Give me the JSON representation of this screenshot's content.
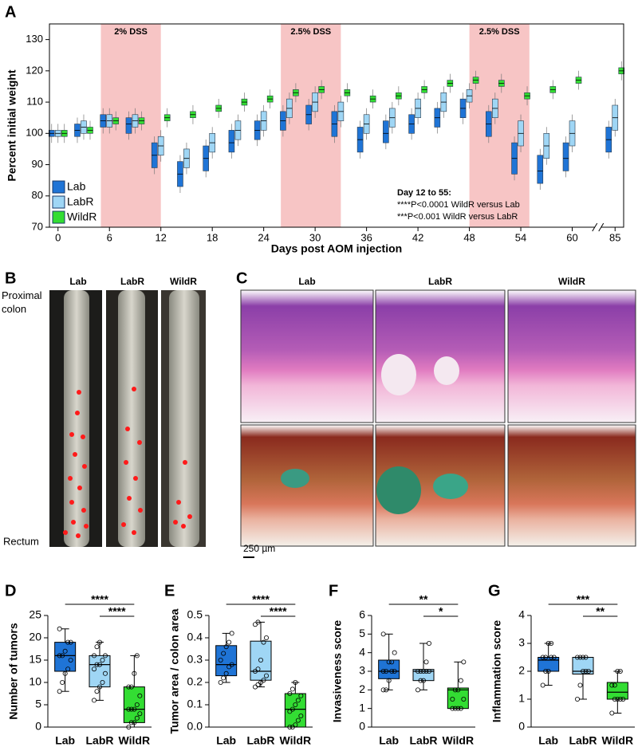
{
  "panel_labels": [
    "A",
    "B",
    "C",
    "D",
    "E",
    "F",
    "G"
  ],
  "photos": {
    "B": {
      "columns": [
        "Lab",
        "LabR",
        "WildR"
      ],
      "top_label": "Proximal colon",
      "bottom_label": "Rectum"
    },
    "C": {
      "columns": [
        "Lab",
        "LabR",
        "WildR"
      ],
      "scale_bar": "250 µm"
    }
  },
  "chart_data": [
    {
      "type": "box_series",
      "ylabel": "Percent initial weight",
      "xlabel": "Days post AOM injection",
      "x": [
        0,
        3,
        6,
        9,
        12,
        15,
        18,
        21,
        24,
        27,
        30,
        33,
        36,
        39,
        42,
        45,
        48,
        51,
        54,
        57,
        60,
        85
      ],
      "xlim": [
        -1,
        86
      ],
      "axis_break": [
        62,
        84
      ],
      "xticks": [
        0,
        6,
        12,
        18,
        24,
        30,
        36,
        42,
        48,
        54,
        60,
        85
      ],
      "ylim": [
        70,
        135
      ],
      "yticks": [
        70,
        80,
        90,
        100,
        110,
        120,
        130
      ],
      "legend": "lower left",
      "shaded": [
        {
          "start": 5,
          "end": 12,
          "label": "2% DSS",
          "color": "#f7c5c5"
        },
        {
          "start": 26,
          "end": 33,
          "label": "2.5% DSS",
          "color": "#f7c5c5"
        },
        {
          "start": 48,
          "end": 55,
          "label": "2.5% DSS",
          "color": "#f7c5c5"
        }
      ],
      "annotation": [
        "Day 12 to 55:",
        "****P<0.0001 WildR versus Lab",
        "***P<0.001 WildR versus LabR"
      ],
      "series": [
        {
          "name": "Lab",
          "color": "#1f74d6",
          "q1": [
            99,
            99,
            102,
            100,
            89,
            83,
            88,
            94,
            98,
            101,
            103,
            99,
            94,
            97,
            100,
            102,
            105,
            99,
            87,
            84,
            88,
            94
          ],
          "median": [
            100,
            101,
            104,
            103,
            93,
            87,
            92,
            97,
            101,
            104,
            106,
            103,
            98,
            100,
            103,
            105,
            108,
            103,
            92,
            88,
            92,
            98
          ],
          "q3": [
            101,
            103,
            106,
            105,
            97,
            91,
            96,
            101,
            104,
            107,
            109,
            107,
            102,
            104,
            106,
            108,
            111,
            107,
            97,
            93,
            97,
            102
          ]
        },
        {
          "name": "LabR",
          "color": "#9fd6f5",
          "q1": [
            99,
            100,
            102,
            102,
            93,
            89,
            94,
            98,
            101,
            105,
            107,
            104,
            100,
            102,
            105,
            107,
            110,
            105,
            96,
            92,
            96,
            101
          ],
          "median": [
            100,
            102,
            104,
            104,
            96,
            92,
            97,
            101,
            104,
            108,
            110,
            107,
            103,
            105,
            108,
            110,
            112,
            108,
            100,
            96,
            100,
            105
          ],
          "q3": [
            101,
            104,
            106,
            106,
            99,
            95,
            100,
            104,
            107,
            111,
            113,
            110,
            106,
            108,
            111,
            113,
            114,
            111,
            104,
            100,
            104,
            109
          ]
        },
        {
          "name": "WildR",
          "color": "#33dd33",
          "q1": [
            99,
            100,
            103,
            103,
            104,
            105,
            107,
            109,
            110,
            112,
            113,
            112,
            110,
            111,
            113,
            115,
            116,
            115,
            111,
            113,
            116,
            119
          ],
          "median": [
            100,
            101,
            104,
            104,
            105,
            106,
            108,
            110,
            111,
            113,
            114,
            113,
            111,
            112,
            114,
            116,
            117,
            116,
            112,
            114,
            117,
            120
          ],
          "q3": [
            101,
            102,
            105,
            105,
            106,
            107,
            109,
            111,
            112,
            114,
            115,
            114,
            112,
            113,
            115,
            117,
            118,
            117,
            113,
            115,
            118,
            121
          ]
        }
      ]
    },
    {
      "type": "box",
      "ylabel": "Number of tumors",
      "categories": [
        "Lab",
        "LabR",
        "WildR"
      ],
      "ylim": [
        0,
        25
      ],
      "yticks": [
        0,
        5,
        10,
        15,
        20,
        25
      ],
      "groups": [
        {
          "color": "#1f74d6",
          "min": 8,
          "q1": 12.5,
          "median": 16,
          "q3": 19,
          "max": 22,
          "points": [
            8,
            10,
            12,
            13,
            15,
            16,
            16,
            17,
            19,
            19,
            22
          ]
        },
        {
          "color": "#9fd6f5",
          "min": 6,
          "q1": 9,
          "median": 14,
          "q3": 16,
          "max": 19,
          "points": [
            6,
            8,
            9,
            10,
            12,
            13,
            14,
            14,
            15,
            16,
            16,
            18,
            19
          ]
        },
        {
          "color": "#33dd33",
          "min": 0,
          "q1": 1,
          "median": 4,
          "q3": 9,
          "max": 16,
          "points": [
            0,
            1,
            1,
            2,
            3,
            4,
            4,
            4,
            5,
            7,
            9,
            9,
            12,
            16
          ]
        }
      ],
      "significance": [
        {
          "label": "****",
          "groups": [
            "Lab",
            "WildR"
          ]
        },
        {
          "label": "****",
          "groups": [
            "LabR",
            "WildR"
          ]
        }
      ]
    },
    {
      "type": "box",
      "ylabel": "Tumor area / colon area",
      "categories": [
        "Lab",
        "LabR",
        "WildR"
      ],
      "ylim": [
        0,
        0.5
      ],
      "yticks": [
        {
          "value": 0,
          "label": "0.0"
        },
        0.1,
        0.2,
        0.3,
        0.4,
        0.5
      ],
      "groups": [
        {
          "color": "#1f74d6",
          "min": 0.2,
          "q1": 0.23,
          "median": 0.28,
          "q3": 0.365,
          "max": 0.42,
          "points": [
            0.2,
            0.22,
            0.24,
            0.27,
            0.28,
            0.3,
            0.33,
            0.36,
            0.38,
            0.42
          ]
        },
        {
          "color": "#9fd6f5",
          "min": 0.18,
          "q1": 0.21,
          "median": 0.25,
          "q3": 0.385,
          "max": 0.47,
          "points": [
            0.18,
            0.19,
            0.2,
            0.21,
            0.23,
            0.25,
            0.26,
            0.3,
            0.38,
            0.4,
            0.46,
            0.47
          ]
        },
        {
          "color": "#33dd33",
          "min": 0,
          "q1": 0,
          "median": 0.08,
          "q3": 0.15,
          "max": 0.2,
          "points": [
            0,
            0,
            0.01,
            0.03,
            0.05,
            0.07,
            0.08,
            0.1,
            0.12,
            0.14,
            0.15,
            0.17,
            0.2
          ]
        }
      ],
      "significance": [
        {
          "label": "****",
          "groups": [
            "Lab",
            "WildR"
          ]
        },
        {
          "label": "****",
          "groups": [
            "LabR",
            "WildR"
          ]
        }
      ]
    },
    {
      "type": "box",
      "ylabel": "Invasiveness score",
      "categories": [
        "Lab",
        "LabR",
        "WildR"
      ],
      "ylim": [
        0,
        6
      ],
      "yticks": [
        0,
        1,
        2,
        3,
        4,
        5,
        6
      ],
      "groups": [
        {
          "color": "#1f74d6",
          "min": 2,
          "q1": 2.6,
          "median": 3,
          "q3": 3.6,
          "max": 5,
          "points": [
            2,
            2,
            2.5,
            3,
            3,
            3,
            3,
            3.5,
            3.5,
            4,
            5
          ]
        },
        {
          "color": "#9fd6f5",
          "min": 2,
          "q1": 2.5,
          "median": 3,
          "q3": 3.1,
          "max": 4.5,
          "points": [
            2,
            2.5,
            2.5,
            3,
            3,
            3,
            3,
            3,
            3.5,
            4.5
          ]
        },
        {
          "color": "#33dd33",
          "min": 1,
          "q1": 1,
          "median": 2,
          "q3": 2.1,
          "max": 3.5,
          "points": [
            1,
            1,
            1,
            1,
            1.5,
            1.5,
            2,
            2,
            2.5,
            3.5
          ]
        }
      ],
      "significance": [
        {
          "label": "**",
          "groups": [
            "Lab",
            "WildR"
          ]
        },
        {
          "label": "*",
          "groups": [
            "LabR",
            "WildR"
          ]
        }
      ]
    },
    {
      "type": "box",
      "ylabel": "Inflammation score",
      "categories": [
        "Lab",
        "LabR",
        "WildR"
      ],
      "ylim": [
        0,
        4
      ],
      "yticks": [
        0,
        1,
        2,
        3,
        4
      ],
      "groups": [
        {
          "color": "#1f74d6",
          "min": 1.5,
          "q1": 2,
          "median": 2.4,
          "q3": 2.5,
          "max": 3,
          "points": [
            1.5,
            2,
            2,
            2.5,
            2.5,
            2.5,
            2.5,
            3,
            3
          ]
        },
        {
          "color": "#9fd6f5",
          "min": 1,
          "q1": 1.9,
          "median": 2,
          "q3": 2.5,
          "max": 2.5,
          "points": [
            1,
            1.5,
            2,
            2,
            2,
            2.5,
            2.5,
            2.5,
            2.5
          ]
        },
        {
          "color": "#33dd33",
          "min": 0.5,
          "q1": 1,
          "median": 1.25,
          "q3": 1.6,
          "max": 2,
          "points": [
            0.5,
            1,
            1,
            1,
            1,
            1.5,
            1.5,
            2,
            2
          ]
        }
      ],
      "significance": [
        {
          "label": "***",
          "groups": [
            "Lab",
            "WildR"
          ]
        },
        {
          "label": "**",
          "groups": [
            "LabR",
            "WildR"
          ]
        }
      ]
    }
  ]
}
